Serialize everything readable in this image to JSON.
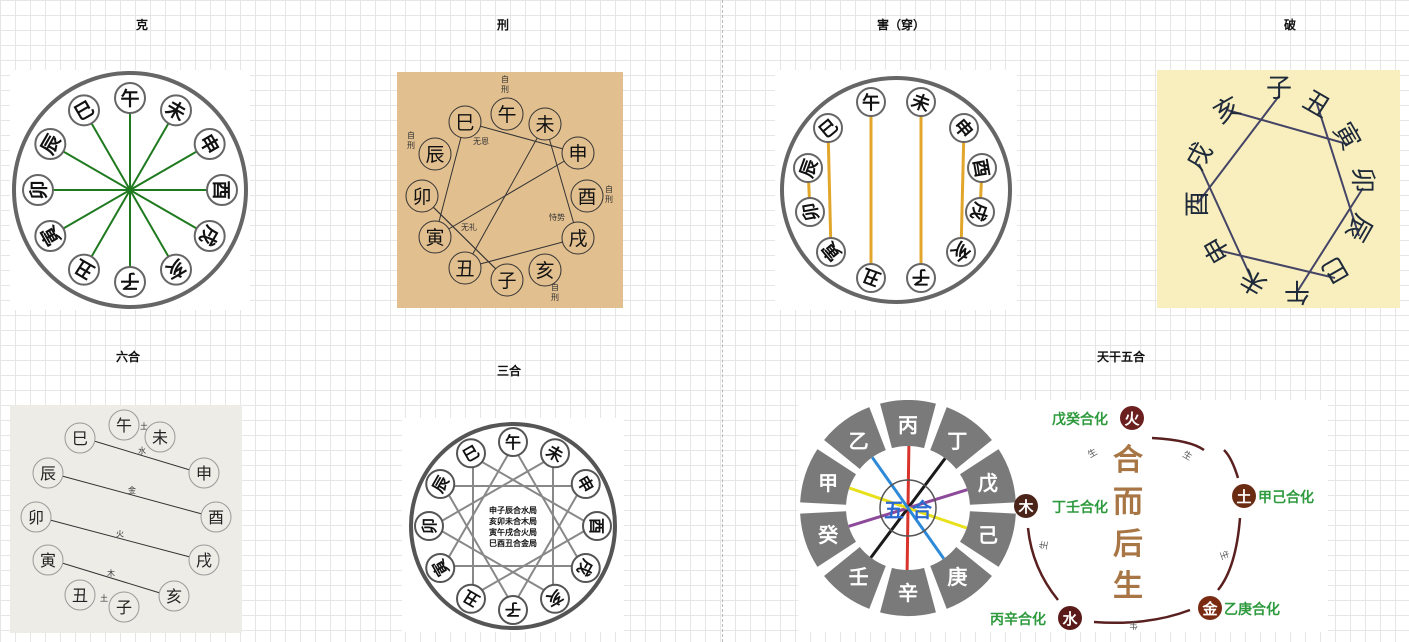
{
  "titles": {
    "ke": "克",
    "xing": "刑",
    "hai": "害（穿）",
    "po": "破",
    "liuhe": "六合",
    "sanhe": "三合",
    "tiangan": "天干五合"
  },
  "branches": [
    "子",
    "丑",
    "寅",
    "卯",
    "辰",
    "巳",
    "午",
    "未",
    "申",
    "酉",
    "戌",
    "亥"
  ],
  "xing": {
    "self": "自刑",
    "wuen": "无恩",
    "wuli": "无礼",
    "shishi": "恃势"
  },
  "liuhe": {
    "labels": [
      "水",
      "金",
      "火",
      "木",
      "土",
      "土"
    ]
  },
  "sanhe": {
    "lines": [
      "申子辰合水局",
      "亥卯未合木局",
      "寅午戌合火局",
      "巳酉丑合金局"
    ]
  },
  "tiangan": {
    "stems": [
      "丙",
      "丁",
      "戊",
      "己",
      "庚",
      "辛",
      "壬",
      "癸",
      "甲",
      "乙"
    ],
    "center": [
      "五",
      "合"
    ],
    "big": [
      "合",
      "而",
      "后",
      "生"
    ],
    "elements": {
      "fire": "火",
      "earth": "土",
      "metal": "金",
      "water": "水",
      "wood": "木"
    },
    "pairs": {
      "wugui": "戊癸合化",
      "jiaji": "甲己合化",
      "yigeng": "乙庚合化",
      "bingxin": "丙辛合化",
      "dingren": "丁壬合化"
    },
    "sheng": "生",
    "colors": {
      "fire": "#6b1f1f",
      "earth": "#6b2b12",
      "metal": "#7a2a10",
      "water": "#5a1a1a",
      "wood": "#4a2418",
      "label": "#2e9a3e",
      "big": "#a87544"
    }
  },
  "colors": {
    "ke_line": "#1f7a1f",
    "hai_line": "#e2a62a",
    "xing_bg": "#e2bf8f",
    "po_bg": "#f9efbe",
    "po_line": "#444466"
  }
}
